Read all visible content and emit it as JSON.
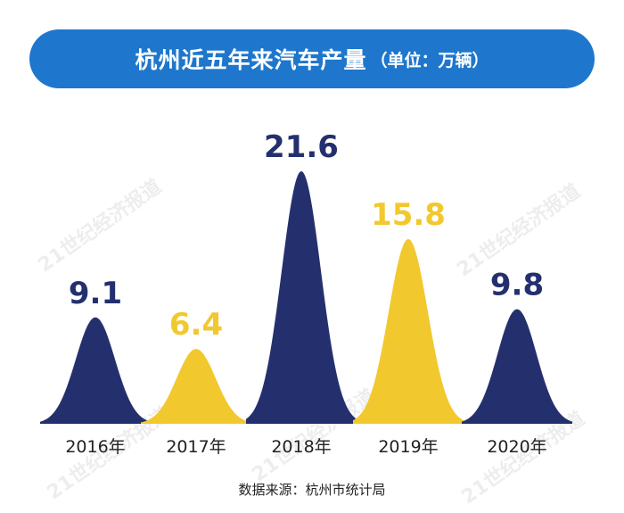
{
  "header": {
    "title": "杭州近五年来汽车产量",
    "unit": "（单位：万辆）"
  },
  "watermark_text": "21世纪经济报道",
  "source": "数据来源：杭州市统计局",
  "colors": {
    "banner": "#1e77cc",
    "navy": "#24306e",
    "yellow": "#f2c82f",
    "label_text": "#222222"
  },
  "chart_data": {
    "type": "area",
    "title": "杭州近五年来汽车产量",
    "unit": "（单位：万辆）",
    "categories": [
      "2016年",
      "2017年",
      "2018年",
      "2019年",
      "2020年"
    ],
    "values": [
      9.1,
      6.4,
      21.6,
      15.8,
      9.8
    ],
    "value_labels": [
      "9.1",
      "6.4",
      "21.6",
      "15.8",
      "9.8"
    ],
    "point_colors": [
      "#24306e",
      "#f2c82f",
      "#24306e",
      "#f2c82f",
      "#24306e"
    ],
    "ylim": [
      0,
      21.6
    ],
    "grid": false
  }
}
